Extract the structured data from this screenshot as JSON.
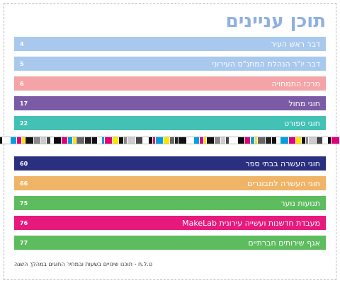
{
  "title": "תוכן עניינים",
  "entries": [
    {
      "label": "דבר ראש העיר",
      "page": "4",
      "color": "#a8c8ee"
    },
    {
      "label": "דבר יו\"ר הנהלת המתנ\"ס העירוני",
      "page": "5",
      "color": "#a8c8ee"
    },
    {
      "label": "מרכז התמחויה",
      "page": "6",
      "color": "#f4a3a6"
    },
    {
      "label": "חוגי מחול",
      "page": "17",
      "color": "#7b5aa6"
    },
    {
      "label": "חוגי ספורט",
      "page": "22",
      "color": "#42c1b4"
    },
    {
      "label": "חוגי העשרה בבתי ספר",
      "page": "60",
      "color": "#2a2f7f"
    },
    {
      "label": "חוגי העשרה למבוגרים",
      "page": "66",
      "color": "#f0b467"
    },
    {
      "label": "תנועות נוער",
      "page": "75",
      "color": "#5cbc5e"
    },
    {
      "label": "מעבדת חדשנות ועשייה עירונית MakeLab",
      "page": "76",
      "color": "#e8197d"
    },
    {
      "label": "אגף שירותים חברתיים",
      "page": "77",
      "color": "#5cbc5e"
    }
  ],
  "footnote": "ט.ל.ח - תוכנו שינויים בשעות ובמחיר החוגים במהלך השנה"
}
